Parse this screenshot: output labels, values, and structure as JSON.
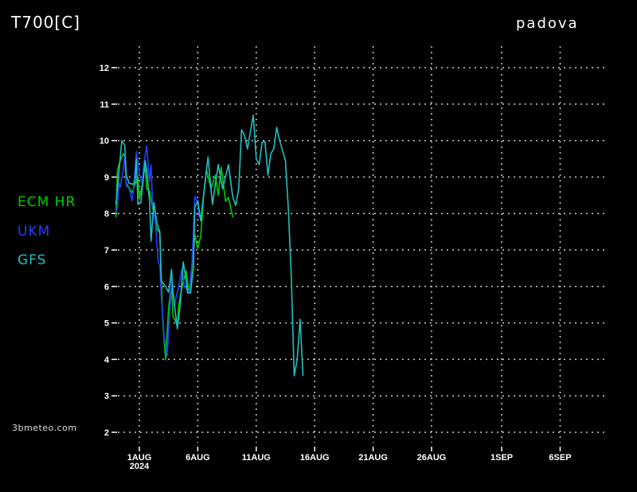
{
  "header": {
    "variable": "T700[C]",
    "location": "padova"
  },
  "credit": "3bmeteo.com",
  "chart_data": {
    "type": "line",
    "title": "T700[C]",
    "subtitle": "padova",
    "xlabel": "",
    "ylabel": "",
    "ylim": [
      2,
      12
    ],
    "yticks": [
      2,
      3,
      4,
      5,
      6,
      7,
      8,
      9,
      10,
      11,
      12
    ],
    "xticks": [
      {
        "date": "2024-08-01",
        "label": "1AUG",
        "sublabel": "2024"
      },
      {
        "date": "2024-08-06",
        "label": "6AUG"
      },
      {
        "date": "2024-08-11",
        "label": "11AUG"
      },
      {
        "date": "2024-08-16",
        "label": "16AUG"
      },
      {
        "date": "2024-08-21",
        "label": "21AUG"
      },
      {
        "date": "2024-08-26",
        "label": "26AUG"
      },
      {
        "date": "2024-09-01",
        "label": "1SEP"
      },
      {
        "date": "2024-09-06",
        "label": "6SEP"
      }
    ],
    "grid": true,
    "legend_position": "left",
    "series": [
      {
        "name": "ECM HR",
        "color": "#00cc00",
        "points": [
          [
            "2024-07-30T00",
            7.9
          ],
          [
            "2024-07-30T03",
            9.2
          ],
          [
            "2024-07-30T09",
            9.45
          ],
          [
            "2024-07-30T15",
            9.64
          ],
          [
            "2024-07-30T18",
            9.55
          ],
          [
            "2024-07-30T21",
            8.83
          ],
          [
            "2024-07-31T09",
            8.57
          ],
          [
            "2024-07-31T15",
            8.8
          ],
          [
            "2024-07-31T21",
            9.0
          ],
          [
            "2024-08-01T00",
            8.4
          ],
          [
            "2024-08-01T06",
            8.8
          ],
          [
            "2024-08-01T12",
            9.34
          ],
          [
            "2024-08-01T15",
            8.68
          ],
          [
            "2024-08-01T21",
            8.62
          ],
          [
            "2024-08-02T03",
            8.18
          ],
          [
            "2024-08-02T12",
            7.56
          ],
          [
            "2024-08-02T18",
            7.48
          ],
          [
            "2024-08-03T00",
            5.06
          ],
          [
            "2024-08-03T06",
            3.99
          ],
          [
            "2024-08-03T12",
            5.4
          ],
          [
            "2024-08-03T18",
            6.06
          ],
          [
            "2024-08-03T21",
            5.19
          ],
          [
            "2024-08-04T06",
            4.95
          ],
          [
            "2024-08-04T09",
            5.5
          ],
          [
            "2024-08-04T15",
            5.93
          ],
          [
            "2024-08-05T00",
            6.43
          ],
          [
            "2024-08-05T06",
            5.84
          ],
          [
            "2024-08-05T09",
            6.06
          ],
          [
            "2024-08-05T18",
            7.41
          ],
          [
            "2024-08-06T00",
            7.04
          ],
          [
            "2024-08-06T06",
            7.37
          ],
          [
            "2024-08-06T12",
            8.47
          ],
          [
            "2024-08-06T18",
            9.2
          ],
          [
            "2024-08-07T03",
            8.68
          ],
          [
            "2024-08-07T12",
            9.05
          ],
          [
            "2024-08-07T18",
            8.5
          ],
          [
            "2024-08-08T00",
            9.27
          ],
          [
            "2024-08-08T09",
            8.33
          ],
          [
            "2024-08-08T15",
            8.44
          ],
          [
            "2024-08-09T00",
            7.9
          ]
        ]
      },
      {
        "name": "UKM",
        "color": "#2040ff",
        "points": [
          [
            "2024-07-30T00",
            8.03
          ],
          [
            "2024-07-30T03",
            8.18
          ],
          [
            "2024-07-30T06",
            8.83
          ],
          [
            "2024-07-30T09",
            8.72
          ],
          [
            "2024-07-30T15",
            9.2
          ],
          [
            "2024-07-30T18",
            9.6
          ],
          [
            "2024-07-30T21",
            8.77
          ],
          [
            "2024-07-31T03",
            8.68
          ],
          [
            "2024-07-31T09",
            8.35
          ],
          [
            "2024-07-31T12",
            8.68
          ],
          [
            "2024-07-31T18",
            9.7
          ],
          [
            "2024-08-01T00",
            9.1
          ],
          [
            "2024-08-01T06",
            8.8
          ],
          [
            "2024-08-01T09",
            9.34
          ],
          [
            "2024-08-01T15",
            9.86
          ],
          [
            "2024-08-01T21",
            8.88
          ],
          [
            "2024-08-02T00",
            9.34
          ],
          [
            "2024-08-02T03",
            8.33
          ],
          [
            "2024-08-02T09",
            7.74
          ],
          [
            "2024-08-02T12",
            7.15
          ],
          [
            "2024-08-02T15",
            6.65
          ],
          [
            "2024-08-02T18",
            6.58
          ],
          [
            "2024-08-02T21",
            5.78
          ],
          [
            "2024-08-03T03",
            4.62
          ],
          [
            "2024-08-03T09",
            4.1
          ],
          [
            "2024-08-03T15",
            5.4
          ],
          [
            "2024-08-03T18",
            6.2
          ],
          [
            "2024-08-04T00",
            5.5
          ],
          [
            "2024-08-04T06",
            5.84
          ],
          [
            "2024-08-04T09",
            6.0
          ],
          [
            "2024-08-04T15",
            6.47
          ],
          [
            "2024-08-04T21",
            6.0
          ],
          [
            "2024-08-05T06",
            5.82
          ],
          [
            "2024-08-05T12",
            6.65
          ],
          [
            "2024-08-05T18",
            8.47
          ],
          [
            "2024-08-06T00",
            8.3
          ],
          [
            "2024-08-06T03",
            7.9
          ]
        ]
      },
      {
        "name": "GFS",
        "color": "#20c0c0",
        "points": [
          [
            "2024-07-30T00",
            8.25
          ],
          [
            "2024-07-30T12",
            10.0
          ],
          [
            "2024-07-30T18",
            9.86
          ],
          [
            "2024-07-30T21",
            9.05
          ],
          [
            "2024-07-31T03",
            8.83
          ],
          [
            "2024-07-31T12",
            8.8
          ],
          [
            "2024-07-31T15",
            8.9
          ],
          [
            "2024-07-31T18",
            9.5
          ],
          [
            "2024-07-31T21",
            8.25
          ],
          [
            "2024-08-01T03",
            8.3
          ],
          [
            "2024-08-01T12",
            9.45
          ],
          [
            "2024-08-01T15",
            9.2
          ],
          [
            "2024-08-01T21",
            8.33
          ],
          [
            "2024-08-02T00",
            7.24
          ],
          [
            "2024-08-02T06",
            8.3
          ],
          [
            "2024-08-02T12",
            7.74
          ],
          [
            "2024-08-02T18",
            7.5
          ],
          [
            "2024-08-02T21",
            6.15
          ],
          [
            "2024-08-03T06",
            6.0
          ],
          [
            "2024-08-03T12",
            5.84
          ],
          [
            "2024-08-03T18",
            6.47
          ],
          [
            "2024-08-03T21",
            5.84
          ],
          [
            "2024-08-04T06",
            4.84
          ],
          [
            "2024-08-04T12",
            5.5
          ],
          [
            "2024-08-04T18",
            6.67
          ],
          [
            "2024-08-05T00",
            6.2
          ],
          [
            "2024-08-05T03",
            5.82
          ],
          [
            "2024-08-05T09",
            5.82
          ],
          [
            "2024-08-05T15",
            6.5
          ],
          [
            "2024-08-05T18",
            8.18
          ],
          [
            "2024-08-06T00",
            8.35
          ],
          [
            "2024-08-06T06",
            7.8
          ],
          [
            "2024-08-06T15",
            8.88
          ],
          [
            "2024-08-06T21",
            9.55
          ],
          [
            "2024-08-07T06",
            8.25
          ],
          [
            "2024-08-07T18",
            9.34
          ],
          [
            "2024-08-08T03",
            8.68
          ],
          [
            "2024-08-08T15",
            9.34
          ],
          [
            "2024-08-09T00",
            8.44
          ],
          [
            "2024-08-09T06",
            8.22
          ],
          [
            "2024-08-09T12",
            8.68
          ],
          [
            "2024-08-09T18",
            10.3
          ],
          [
            "2024-08-10T00",
            10.14
          ],
          [
            "2024-08-10T06",
            9.77
          ],
          [
            "2024-08-10T18",
            10.7
          ],
          [
            "2024-08-11T00",
            9.5
          ],
          [
            "2024-08-11T06",
            9.34
          ],
          [
            "2024-08-11T12",
            9.95
          ],
          [
            "2024-08-11T18",
            9.97
          ],
          [
            "2024-08-12T00",
            9.05
          ],
          [
            "2024-08-12T06",
            9.64
          ],
          [
            "2024-08-12T12",
            9.77
          ],
          [
            "2024-08-12T18",
            10.36
          ],
          [
            "2024-08-13T00",
            10.0
          ],
          [
            "2024-08-13T12",
            9.45
          ],
          [
            "2024-08-13T18",
            8.1
          ],
          [
            "2024-08-14T00",
            6.28
          ],
          [
            "2024-08-14T06",
            3.55
          ],
          [
            "2024-08-14T12",
            3.99
          ],
          [
            "2024-08-14T18",
            5.1
          ],
          [
            "2024-08-15T00",
            3.55
          ]
        ]
      }
    ]
  }
}
